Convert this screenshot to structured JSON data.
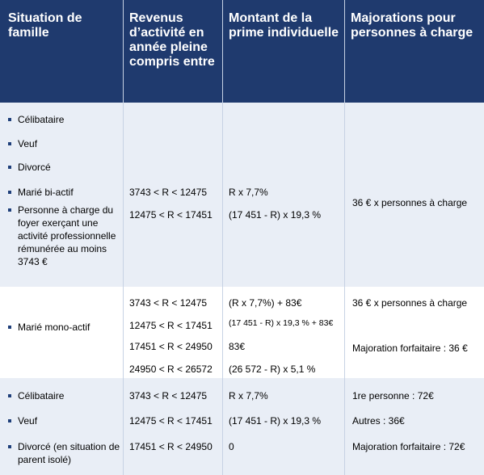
{
  "header": [
    "Situation de famille",
    "Revenus d’activité en année pleine compris entre",
    "Montant de la prime individuelle",
    "Majorations pour personnes à charge"
  ],
  "rows": [
    {
      "situations": [
        "Célibataire",
        "Veuf",
        "Divorcé",
        "Marié bi-actif",
        "Personne à charge du foyer exerçant une activité professionnelle rémunérée au moins 3743 €"
      ],
      "ranges": [
        "3743 < R < 12475",
        "12475 < R < 17451"
      ],
      "amounts": [
        "R x 7,7%",
        "(17 451 - R) x 19,3 %"
      ],
      "majorations": [
        "36 € x personnes à charge"
      ]
    },
    {
      "situations": [
        "Marié mono-actif"
      ],
      "ranges": [
        "3743 < R < 12475",
        "12475 < R < 17451",
        "17451 < R < 24950",
        "24950 < R < 26572"
      ],
      "amounts": [
        "(R x 7,7%) + 83€",
        "(17 451 - R) x 19,3 % + 83€",
        "83€",
        "(26 572 - R) x 5,1 %"
      ],
      "majorations": [
        "36 € x personnes à charge",
        "Majoration forfaitaire : 36 €"
      ]
    },
    {
      "situations": [
        "Célibataire",
        "Veuf",
        "Divorcé (en situation de parent isolé)"
      ],
      "ranges": [
        "3743 < R < 12475",
        "12475 < R < 17451",
        "17451 < R < 24950"
      ],
      "amounts": [
        "R x 7,7%",
        "(17 451 - R) x 19,3 %",
        "0"
      ],
      "majorations": [
        "1re personne : 72€",
        "Autres : 36€",
        "Majoration forfaitaire : 72€"
      ]
    }
  ]
}
